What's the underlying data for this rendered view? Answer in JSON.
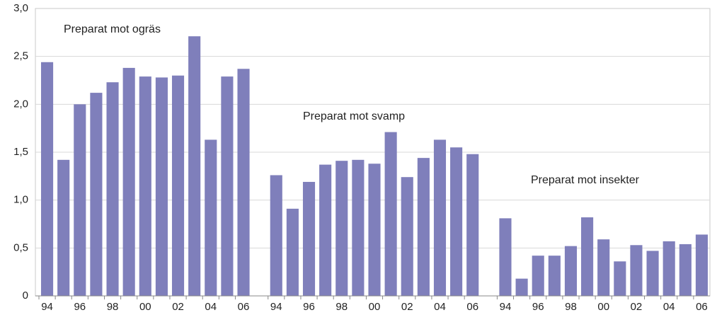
{
  "chart_data": {
    "type": "bar",
    "categories": [
      "94",
      null,
      "96",
      null,
      "98",
      null,
      "00",
      null,
      "02",
      null,
      "04",
      null,
      "06"
    ],
    "series": [
      {
        "name": "Preparat mot ogräs",
        "color": "#7f7fbb",
        "values": [
          2.44,
          1.42,
          2.0,
          2.12,
          2.23,
          2.38,
          2.29,
          2.28,
          2.3,
          2.71,
          1.63,
          2.29,
          2.37
        ]
      },
      {
        "name": "Preparat mot svamp",
        "color": "#7f7fbb",
        "values": [
          1.26,
          0.91,
          1.19,
          1.37,
          1.41,
          1.42,
          1.38,
          1.71,
          1.24,
          1.44,
          1.63,
          1.55,
          1.48
        ]
      },
      {
        "name": "Preparat mot insekter",
        "color": "#7f7fbb",
        "values": [
          0.81,
          0.18,
          0.42,
          0.42,
          0.52,
          0.82,
          0.59,
          0.36,
          0.53,
          0.47,
          0.57,
          0.54,
          0.64
        ]
      }
    ],
    "ylim": [
      0,
      3
    ],
    "yticks": [
      0,
      {
        "value": 0.5,
        "label": "0,5"
      },
      {
        "value": 1,
        "label": "1,0"
      },
      {
        "value": 1.5,
        "label": "1,5"
      },
      {
        "value": 2,
        "label": "2,0"
      },
      {
        "value": 2.5,
        "label": "2,5"
      },
      {
        "value": 3,
        "label": "3,0"
      }
    ],
    "grid": true
  }
}
